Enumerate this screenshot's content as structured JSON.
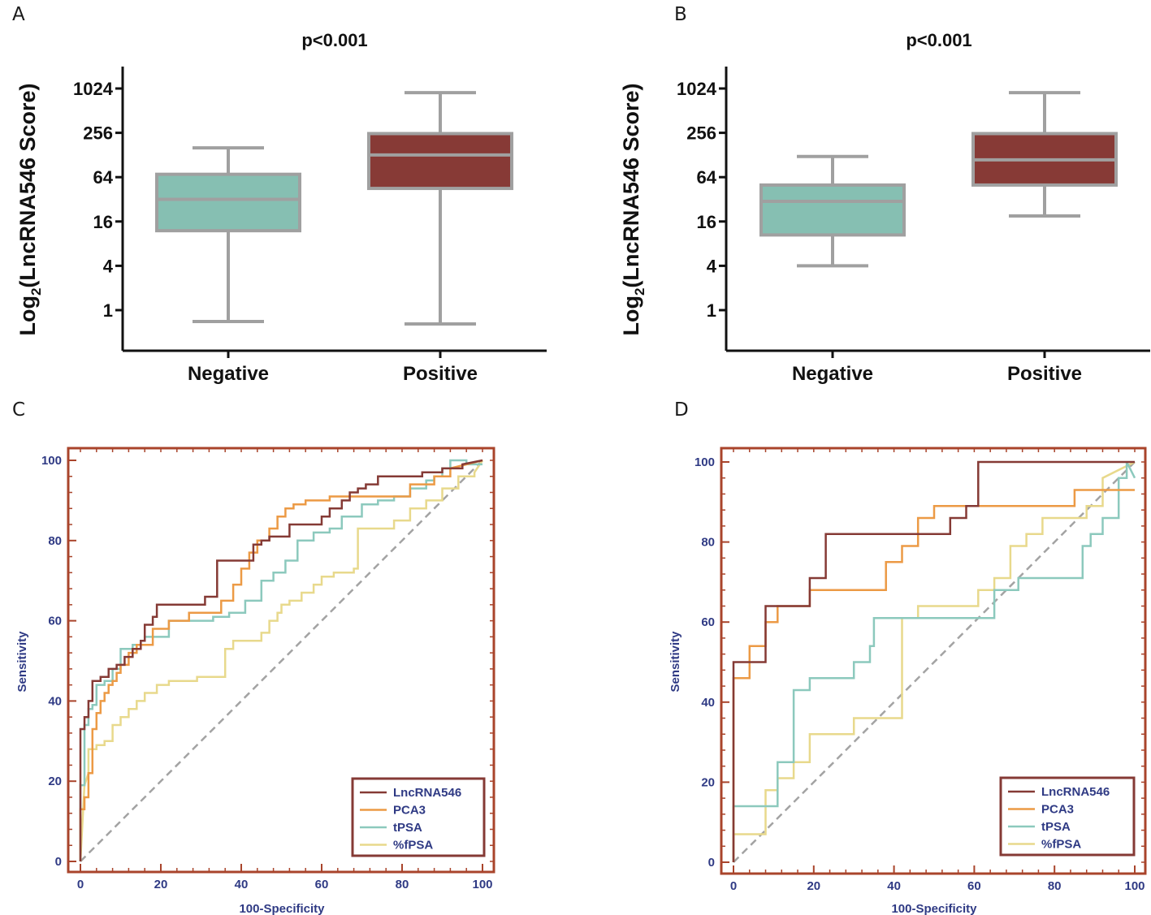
{
  "panels": {
    "A": "A",
    "B": "B",
    "C": "C",
    "D": "D"
  },
  "colors": {
    "negative_box": "#86bfb2",
    "positive_box": "#873a36",
    "box_stroke": "#a0a0a0",
    "lncrna546": "#853a35",
    "pca3": "#ec9a45",
    "tpsa": "#8cc9bd",
    "fpsa": "#e8d98c",
    "roc_frame": "#a9442b",
    "diagonal": "#a3a3a3",
    "roc_text": "#2f3a84"
  },
  "chart_data": [
    {
      "type": "box",
      "panel": "A",
      "title": "p<0.001",
      "ylabel": "Log2(LncRNA546 Score)",
      "yscale": "log2",
      "yticks": [
        "1",
        "4",
        "16",
        "64",
        "256",
        "1024"
      ],
      "ylim": [
        0.3,
        2048
      ],
      "categories": [
        "Negative",
        "Positive"
      ],
      "boxes": [
        {
          "name": "Negative",
          "min": 0.7,
          "q1": 12,
          "median": 32,
          "q3": 70,
          "max": 160
        },
        {
          "name": "Positive",
          "min": 0.65,
          "q1": 45,
          "median": 128,
          "q3": 250,
          "max": 900
        }
      ]
    },
    {
      "type": "box",
      "panel": "B",
      "title": "p<0.001",
      "ylabel": "Log2(LncRNA546 Score)",
      "yscale": "log2",
      "yticks": [
        "1",
        "4",
        "16",
        "64",
        "256",
        "1024"
      ],
      "ylim": [
        0.3,
        2048
      ],
      "categories": [
        "Negative",
        "Positive"
      ],
      "boxes": [
        {
          "name": "Negative",
          "min": 4,
          "q1": 10.5,
          "median": 30,
          "q3": 50,
          "max": 122
        },
        {
          "name": "Positive",
          "min": 19,
          "q1": 50,
          "median": 110,
          "q3": 250,
          "max": 900
        }
      ]
    },
    {
      "type": "line",
      "panel": "C",
      "xlabel": "100-Specificity",
      "ylabel": "Sensitivity",
      "xlim": [
        0,
        100
      ],
      "ylim": [
        0,
        100
      ],
      "xticks": [
        "0",
        "20",
        "40",
        "60",
        "80",
        "100"
      ],
      "yticks": [
        "0",
        "20",
        "40",
        "60",
        "80",
        "100"
      ],
      "legend": [
        "LncRNA546",
        "PCA3",
        "tPSA",
        "%fPSA"
      ],
      "series": [
        {
          "name": "LncRNA546",
          "x": [
            0,
            0,
            1,
            1,
            2,
            2,
            3,
            3,
            5,
            5,
            7,
            7,
            9,
            9,
            11,
            11,
            13,
            13,
            15,
            15,
            16,
            16,
            18,
            18,
            19,
            19,
            24,
            24,
            31,
            31,
            34,
            34,
            38,
            38,
            43,
            43,
            45,
            45,
            47,
            47,
            52,
            52,
            60,
            60,
            62,
            62,
            65,
            65,
            67,
            67,
            69,
            69,
            71,
            71,
            74,
            74,
            80,
            80,
            85,
            85,
            90,
            90,
            95,
            95,
            100
          ],
          "y": [
            0,
            33,
            33,
            36,
            36,
            40,
            40,
            45,
            45,
            46,
            46,
            48,
            48,
            49,
            49,
            51,
            51,
            53,
            53,
            55,
            55,
            59,
            59,
            61,
            61,
            64,
            64,
            64,
            64,
            66,
            66,
            75,
            75,
            75,
            75,
            79,
            79,
            80,
            80,
            81,
            81,
            84,
            84,
            86,
            86,
            88,
            88,
            90,
            90,
            92,
            92,
            93,
            93,
            94,
            94,
            96,
            96,
            96,
            96,
            97,
            97,
            98,
            98,
            99,
            100
          ]
        },
        {
          "name": "PCA3",
          "x": [
            0,
            0,
            1,
            1,
            2,
            2,
            3,
            3,
            4,
            4,
            5,
            5,
            6,
            6,
            7,
            7,
            8,
            8,
            9,
            9,
            10,
            10,
            12,
            12,
            14,
            14,
            18,
            18,
            22,
            22,
            27,
            27,
            35,
            35,
            38,
            38,
            40,
            40,
            42,
            42,
            44,
            44,
            47,
            47,
            49,
            49,
            51,
            51,
            53,
            53,
            56,
            56,
            62,
            62,
            82,
            82,
            88,
            88,
            92,
            92,
            100
          ],
          "y": [
            0,
            13,
            13,
            16,
            16,
            22,
            22,
            33,
            33,
            37,
            37,
            40,
            40,
            42,
            42,
            44,
            44,
            45,
            45,
            47,
            47,
            49,
            49,
            52,
            52,
            54,
            54,
            58,
            58,
            60,
            60,
            62,
            62,
            65,
            65,
            69,
            69,
            73,
            73,
            77,
            77,
            80,
            80,
            83,
            83,
            86,
            86,
            88,
            88,
            89,
            89,
            90,
            90,
            91,
            91,
            94,
            94,
            96,
            96,
            98,
            100
          ]
        },
        {
          "name": "tPSA",
          "x": [
            0,
            0,
            1,
            1,
            2,
            2,
            3,
            3,
            4,
            4,
            6,
            6,
            8,
            8,
            10,
            10,
            13,
            13,
            15,
            15,
            16,
            16,
            22,
            22,
            33,
            33,
            37,
            37,
            41,
            41,
            45,
            45,
            48,
            48,
            51,
            51,
            54,
            54,
            58,
            58,
            62,
            62,
            65,
            65,
            70,
            70,
            74,
            74,
            78,
            78,
            82,
            82,
            86,
            86,
            88,
            88,
            90,
            90,
            92,
            92,
            96,
            96,
            100
          ],
          "y": [
            0,
            19,
            19,
            34,
            34,
            38,
            38,
            39,
            39,
            44,
            44,
            45,
            45,
            48,
            48,
            53,
            53,
            54,
            54,
            55,
            55,
            56,
            56,
            60,
            60,
            61,
            61,
            62,
            62,
            65,
            65,
            70,
            70,
            72,
            72,
            75,
            75,
            80,
            80,
            82,
            82,
            83,
            83,
            86,
            86,
            89,
            89,
            90,
            90,
            91,
            91,
            93,
            93,
            95,
            95,
            96,
            96,
            98,
            98,
            100,
            100,
            99,
            99
          ]
        },
        {
          "name": "%fPSA",
          "x": [
            0,
            0,
            1,
            1,
            2,
            2,
            4,
            4,
            6,
            6,
            8,
            8,
            10,
            10,
            12,
            12,
            14,
            14,
            16,
            16,
            19,
            19,
            22,
            22,
            25,
            25,
            29,
            29,
            35,
            35,
            36,
            36,
            38,
            38,
            41,
            41,
            45,
            45,
            47,
            47,
            49,
            49,
            50,
            50,
            52,
            52,
            55,
            55,
            58,
            58,
            60,
            60,
            63,
            63,
            68,
            68,
            69,
            69,
            78,
            78,
            82,
            82,
            86,
            86,
            90,
            90,
            94,
            94,
            98,
            98,
            100
          ],
          "y": [
            0,
            0,
            19,
            19,
            22,
            28,
            28,
            29,
            29,
            30,
            30,
            34,
            34,
            36,
            36,
            38,
            38,
            40,
            40,
            42,
            42,
            44,
            44,
            45,
            45,
            45,
            45,
            46,
            46,
            46,
            46,
            53,
            53,
            55,
            55,
            55,
            55,
            57,
            57,
            60,
            60,
            62,
            62,
            64,
            64,
            65,
            65,
            67,
            67,
            69,
            69,
            71,
            71,
            72,
            72,
            73,
            73,
            83,
            83,
            85,
            85,
            88,
            88,
            90,
            90,
            93,
            93,
            96,
            96,
            97,
            100
          ]
        }
      ]
    },
    {
      "type": "line",
      "panel": "D",
      "xlabel": "100-Specificity",
      "ylabel": "Sensitivity",
      "xlim": [
        0,
        100
      ],
      "ylim": [
        0,
        100
      ],
      "xticks": [
        "0",
        "20",
        "40",
        "60",
        "80",
        "100"
      ],
      "yticks": [
        "0",
        "20",
        "40",
        "60",
        "80",
        "100"
      ],
      "legend": [
        "LncRNA546",
        "PCA3",
        "tPSA",
        "%fPSA"
      ],
      "series": [
        {
          "name": "LncRNA546",
          "x": [
            0,
            0,
            4,
            4,
            8,
            8,
            11,
            11,
            19,
            19,
            23,
            23,
            42,
            42,
            54,
            54,
            58,
            58,
            61,
            61,
            100
          ],
          "y": [
            0,
            50,
            50,
            50,
            50,
            64,
            64,
            64,
            64,
            71,
            71,
            82,
            82,
            82,
            82,
            86,
            86,
            89,
            89,
            100,
            100
          ]
        },
        {
          "name": "PCA3",
          "x": [
            0,
            0,
            1,
            1,
            4,
            4,
            8,
            8,
            11,
            11,
            19,
            19,
            38,
            38,
            42,
            42,
            46,
            46,
            50,
            50,
            85,
            85,
            100
          ],
          "y": [
            0,
            46,
            46,
            46,
            46,
            54,
            54,
            60,
            60,
            64,
            64,
            68,
            68,
            75,
            75,
            79,
            79,
            86,
            86,
            89,
            89,
            93,
            93
          ]
        },
        {
          "name": "tPSA",
          "x": [
            0,
            0,
            6,
            6,
            11,
            11,
            15,
            15,
            19,
            19,
            30,
            30,
            34,
            34,
            35,
            35,
            42,
            42,
            65,
            65,
            71,
            71,
            87,
            87,
            89,
            89,
            92,
            92,
            96,
            96,
            98,
            98,
            100
          ],
          "y": [
            0,
            14,
            14,
            14,
            14,
            25,
            25,
            43,
            43,
            46,
            46,
            50,
            50,
            54,
            54,
            61,
            61,
            61,
            61,
            68,
            68,
            71,
            71,
            79,
            79,
            82,
            82,
            86,
            86,
            96,
            96,
            100,
            96
          ]
        },
        {
          "name": "%fPSA",
          "x": [
            0,
            0,
            4,
            4,
            8,
            8,
            11,
            11,
            15,
            15,
            19,
            19,
            30,
            30,
            35,
            35,
            42,
            42,
            46,
            46,
            54,
            54,
            61,
            61,
            65,
            65,
            69,
            69,
            73,
            73,
            77,
            77,
            84,
            84,
            88,
            88,
            92,
            92,
            100
          ],
          "y": [
            0,
            7,
            7,
            7,
            7,
            18,
            18,
            21,
            21,
            25,
            25,
            32,
            32,
            36,
            36,
            36,
            36,
            61,
            61,
            64,
            64,
            64,
            64,
            68,
            68,
            71,
            71,
            79,
            79,
            82,
            82,
            86,
            86,
            86,
            86,
            89,
            89,
            96,
            100
          ]
        }
      ]
    }
  ]
}
